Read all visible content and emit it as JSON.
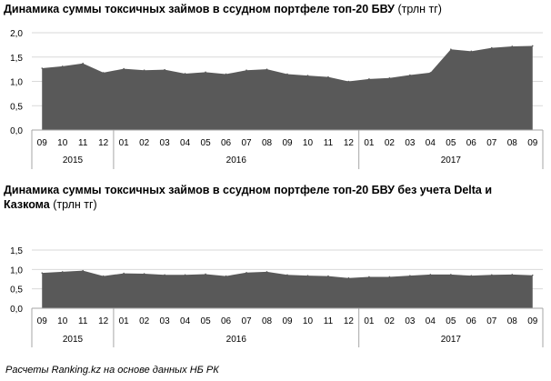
{
  "charts": [
    {
      "title_main": "Динамика суммы токсичных займов в ссудном портфеле топ-20 БВУ",
      "title_unit": "(трлн тг)"
    },
    {
      "title_main": "Динамика суммы токсичных займов в ссудном портфеле топ-20 БВУ без учета Delta и Казкома",
      "title_unit": "(трлн тг)"
    }
  ],
  "source": "Расчеты Ranking.kz на основе данных НБ РК",
  "colors": {
    "area": "#595959",
    "axis": "#a6a6a6",
    "grid": "#d9d9d9"
  },
  "chart_data": [
    {
      "type": "area",
      "categories": [
        "09",
        "10",
        "11",
        "12",
        "01",
        "02",
        "03",
        "04",
        "05",
        "06",
        "07",
        "08",
        "09",
        "10",
        "11",
        "12",
        "01",
        "02",
        "03",
        "04",
        "05",
        "06",
        "07",
        "08",
        "09"
      ],
      "year_groups": [
        {
          "label": "2015",
          "count": 4
        },
        {
          "label": "2016",
          "count": 12
        },
        {
          "label": "2017",
          "count": 9
        }
      ],
      "values": [
        1.27,
        1.31,
        1.37,
        1.18,
        1.26,
        1.23,
        1.24,
        1.16,
        1.19,
        1.15,
        1.23,
        1.25,
        1.15,
        1.12,
        1.09,
        1.0,
        1.05,
        1.07,
        1.13,
        1.18,
        1.66,
        1.62,
        1.69,
        1.72,
        1.73
      ],
      "ylim": [
        0,
        2.0
      ],
      "yticks": [
        "0,0",
        "0,5",
        "1,0",
        "1,5",
        "2,0"
      ],
      "grid": true
    },
    {
      "type": "area",
      "categories": [
        "09",
        "10",
        "11",
        "12",
        "01",
        "02",
        "03",
        "04",
        "05",
        "06",
        "07",
        "08",
        "09",
        "10",
        "11",
        "12",
        "01",
        "02",
        "03",
        "04",
        "05",
        "06",
        "07",
        "08",
        "09"
      ],
      "year_groups": [
        {
          "label": "2015",
          "count": 4
        },
        {
          "label": "2016",
          "count": 12
        },
        {
          "label": "2017",
          "count": 9
        }
      ],
      "values": [
        0.91,
        0.94,
        0.97,
        0.83,
        0.9,
        0.89,
        0.86,
        0.86,
        0.88,
        0.83,
        0.92,
        0.94,
        0.86,
        0.84,
        0.83,
        0.78,
        0.81,
        0.81,
        0.84,
        0.87,
        0.87,
        0.84,
        0.86,
        0.87,
        0.85
      ],
      "ylim": [
        0,
        1.5
      ],
      "yticks": [
        "0,0",
        "0,5",
        "1,0",
        "1,5"
      ],
      "grid": true
    }
  ]
}
